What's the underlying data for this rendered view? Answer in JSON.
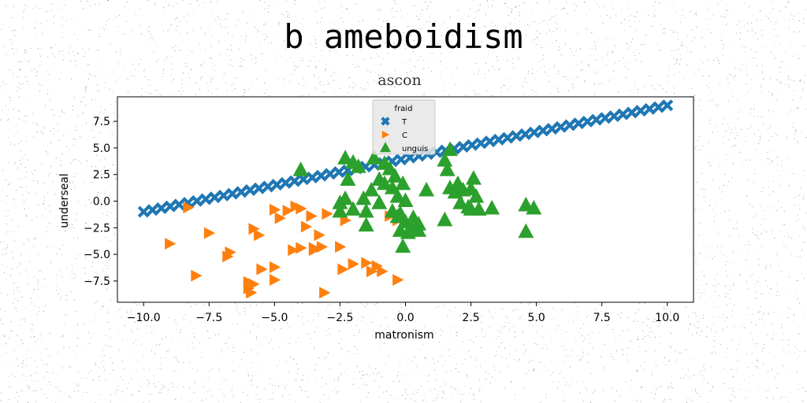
{
  "figure": {
    "suptitle": "b ameboidism"
  },
  "chart_data": {
    "type": "scatter",
    "title": "ascon",
    "xlabel": "matronism",
    "ylabel": "underseal",
    "xlim": [
      -11.0,
      11.0
    ],
    "ylim": [
      -9.5,
      9.8
    ],
    "xticks": [
      -10.0,
      -7.5,
      -5.0,
      -2.5,
      0.0,
      2.5,
      5.0,
      7.5,
      10.0
    ],
    "xtick_labels": [
      "−10.0",
      "−7.5",
      "−5.0",
      "−2.5",
      "0.0",
      "2.5",
      "5.0",
      "7.5",
      "10.0"
    ],
    "yticks": [
      -7.5,
      -5.0,
      -2.5,
      0.0,
      2.5,
      5.0,
      7.5
    ],
    "ytick_labels": [
      "−7.5",
      "−5.0",
      "−2.5",
      "0.0",
      "2.5",
      "5.0",
      "7.5"
    ],
    "grid": false,
    "legend": {
      "title": "fraid",
      "position": "top-center"
    },
    "series": [
      {
        "name": "T",
        "marker": "x",
        "color": "#1f77b4",
        "line": {
          "x_start": -10.0,
          "y_start": -1.0,
          "x_end": 10.0,
          "y_end": 9.0,
          "count": 60
        }
      },
      {
        "name": "C",
        "marker": "triangle-right",
        "color": "#ff7f0e",
        "points": [
          [
            -8.3,
            -0.6
          ],
          [
            -9.0,
            -4.0
          ],
          [
            -8.0,
            -7.0
          ],
          [
            -7.5,
            -3.0
          ],
          [
            -6.8,
            -5.2
          ],
          [
            -6.7,
            -4.8
          ],
          [
            -6.0,
            -7.6
          ],
          [
            -6.0,
            -8.2
          ],
          [
            -5.8,
            -7.8
          ],
          [
            -5.9,
            -8.6
          ],
          [
            -5.8,
            -2.6
          ],
          [
            -5.6,
            -3.2
          ],
          [
            -5.5,
            -6.4
          ],
          [
            -5.0,
            -0.8
          ],
          [
            -5.0,
            -6.2
          ],
          [
            -5.0,
            -7.4
          ],
          [
            -4.8,
            -1.6
          ],
          [
            -4.5,
            -0.9
          ],
          [
            -4.3,
            -4.6
          ],
          [
            -4.2,
            -0.5
          ],
          [
            -4.0,
            -0.7
          ],
          [
            -4.0,
            -4.4
          ],
          [
            -3.8,
            -2.4
          ],
          [
            -3.6,
            -1.4
          ],
          [
            -3.5,
            -4.4
          ],
          [
            -3.5,
            -4.6
          ],
          [
            -3.3,
            -3.2
          ],
          [
            -3.2,
            -4.3
          ],
          [
            -3.1,
            -8.6
          ],
          [
            -3.0,
            -1.2
          ],
          [
            -2.5,
            -4.3
          ],
          [
            -2.4,
            -6.4
          ],
          [
            -2.3,
            -1.8
          ],
          [
            -2.0,
            -5.9
          ],
          [
            -1.5,
            -5.8
          ],
          [
            -1.3,
            -6.6
          ],
          [
            -1.1,
            -6.1
          ],
          [
            -0.9,
            -6.6
          ],
          [
            -0.6,
            -1.4
          ],
          [
            -0.3,
            -7.4
          ],
          [
            -0.3,
            -1.8
          ]
        ]
      },
      {
        "name": "unguis",
        "marker": "triangle-up",
        "color": "#2ca02c",
        "points": [
          [
            -4.0,
            2.9
          ],
          [
            -2.3,
            4.0
          ],
          [
            -2.2,
            2.0
          ],
          [
            -2.0,
            3.6
          ],
          [
            -1.8,
            3.2
          ],
          [
            -2.3,
            0.2
          ],
          [
            -2.5,
            -0.2
          ],
          [
            -2.5,
            -1.0
          ],
          [
            -2.0,
            -0.8
          ],
          [
            -1.6,
            0.2
          ],
          [
            -1.5,
            -1.0
          ],
          [
            -1.3,
            1.0
          ],
          [
            -1.0,
            -0.2
          ],
          [
            -1.0,
            2.0
          ],
          [
            -1.2,
            4.0
          ],
          [
            -1.5,
            -2.3
          ],
          [
            -0.8,
            1.6
          ],
          [
            -0.8,
            3.5
          ],
          [
            -0.6,
            3.0
          ],
          [
            -0.5,
            1.2
          ],
          [
            -0.4,
            2.3
          ],
          [
            -0.5,
            -1.0
          ],
          [
            -0.3,
            -1.5
          ],
          [
            -0.3,
            0.4
          ],
          [
            -0.2,
            -1.2
          ],
          [
            -0.1,
            1.6
          ],
          [
            0.0,
            -2.0
          ],
          [
            -0.2,
            -2.8
          ],
          [
            0.1,
            -3.0
          ],
          [
            0.2,
            -2.5
          ],
          [
            0.3,
            -1.6
          ],
          [
            0.5,
            -2.2
          ],
          [
            0.5,
            -2.8
          ],
          [
            0.0,
            0.0
          ],
          [
            -0.1,
            -4.3
          ],
          [
            0.8,
            1.0
          ],
          [
            1.5,
            3.8
          ],
          [
            1.5,
            -1.8
          ],
          [
            1.6,
            2.9
          ],
          [
            1.7,
            4.8
          ],
          [
            1.7,
            1.2
          ],
          [
            1.9,
            0.8
          ],
          [
            2.0,
            1.6
          ],
          [
            2.1,
            -0.2
          ],
          [
            2.2,
            1.0
          ],
          [
            2.4,
            -0.6
          ],
          [
            2.5,
            1.1
          ],
          [
            2.7,
            0.4
          ],
          [
            2.8,
            -0.8
          ],
          [
            2.5,
            -0.8
          ],
          [
            2.6,
            2.1
          ],
          [
            3.3,
            -0.7
          ],
          [
            4.6,
            -0.4
          ],
          [
            4.6,
            -2.9
          ],
          [
            4.9,
            -0.7
          ]
        ]
      }
    ]
  }
}
